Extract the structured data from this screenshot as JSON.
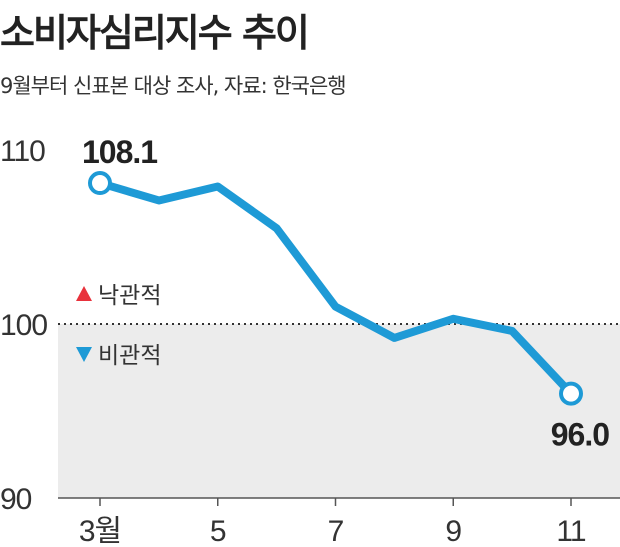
{
  "header": {
    "title": "소비자심리지수 추이",
    "subtitle": "9월부터 신표본 대상 조사, 자료: 한국은행"
  },
  "legend": {
    "optimistic": {
      "label": "낙관적",
      "color": "#e8323c"
    },
    "pessimistic": {
      "label": "비관적",
      "color": "#1e9ad6"
    }
  },
  "colors": {
    "line": "#1e9ad6",
    "shade": "#ececec",
    "axis": "#555555"
  },
  "chart_data": {
    "type": "line",
    "x": [
      3,
      4,
      5,
      6,
      7,
      8,
      9,
      10,
      11
    ],
    "x_tick_values": [
      3,
      5,
      7,
      9,
      11
    ],
    "x_tick_labels": [
      "3월",
      "5",
      "7",
      "9",
      "11"
    ],
    "series": [
      {
        "values": [
          108.1,
          107.1,
          107.9,
          105.5,
          101.0,
          99.2,
          100.3,
          99.6,
          96.0
        ]
      }
    ],
    "y_ticks": [
      110,
      100,
      90
    ],
    "ylim": [
      90,
      110
    ],
    "reference_line": 100,
    "data_labels": [
      {
        "index": 0,
        "text": "108.1"
      },
      {
        "index": 8,
        "text": "96.0"
      }
    ]
  }
}
